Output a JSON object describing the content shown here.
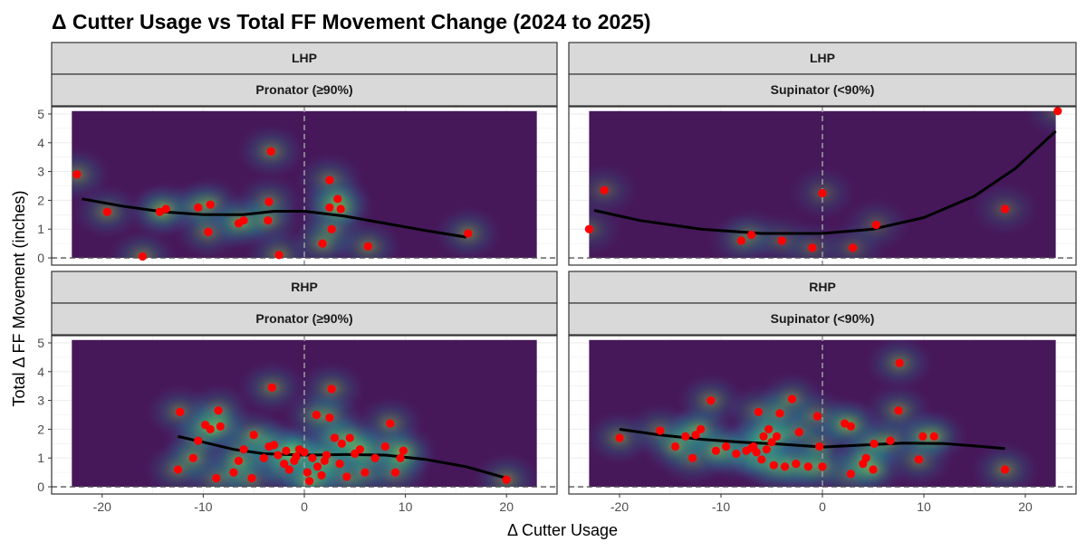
{
  "chart_data": {
    "type": "scatter",
    "title": "Δ Cutter Usage vs Total FF Movement Change (2024 to 2025)",
    "xlabel": "Δ Cutter Usage",
    "ylabel": "Total Δ FF Movement (inches)",
    "xlim": [
      -25,
      25
    ],
    "ylim": [
      -0.25,
      5.25
    ],
    "x_ticks": [
      "-20",
      "-10",
      "0",
      "10",
      "20"
    ],
    "y_ticks": [
      "0",
      "1",
      "2",
      "3",
      "4",
      "5"
    ],
    "grid": true,
    "reference_lines": {
      "vertical_x": 0,
      "horizontal_y": 0,
      "style": "dashed"
    },
    "colors": {
      "points": "#ff0000",
      "smooth": "#000000",
      "strip_fill": "#d9d9d9",
      "density_low": "#46185a",
      "density_high": "#e6f53a"
    },
    "panels": [
      {
        "row_label": "LHP",
        "col_label": "Pronator (≥90%)",
        "points": [
          [
            -22.5,
            2.9
          ],
          [
            -19.5,
            1.6
          ],
          [
            -16,
            0.05
          ],
          [
            -14.3,
            1.6
          ],
          [
            -13.7,
            1.7
          ],
          [
            -10.5,
            1.75
          ],
          [
            -9.3,
            1.85
          ],
          [
            -9.5,
            0.9
          ],
          [
            -6.5,
            1.2
          ],
          [
            -6.0,
            1.3
          ],
          [
            -3.3,
            3.7
          ],
          [
            -3.5,
            1.95
          ],
          [
            -3.6,
            1.3
          ],
          [
            -2.5,
            0.1
          ],
          [
            2.5,
            2.7
          ],
          [
            2.5,
            1.75
          ],
          [
            2.7,
            1.0
          ],
          [
            3.3,
            2.05
          ],
          [
            3.6,
            1.7
          ],
          [
            1.8,
            0.5
          ],
          [
            6.3,
            0.4
          ],
          [
            16.2,
            0.85
          ]
        ],
        "smooth": [
          [
            -22,
            2.05
          ],
          [
            -18,
            1.8
          ],
          [
            -14,
            1.6
          ],
          [
            -10,
            1.5
          ],
          [
            -6,
            1.5
          ],
          [
            -3,
            1.62
          ],
          [
            0,
            1.62
          ],
          [
            4,
            1.45
          ],
          [
            8,
            1.2
          ],
          [
            12,
            0.95
          ],
          [
            16,
            0.72
          ]
        ],
        "density_max": 1.0
      },
      {
        "row_label": "LHP",
        "col_label": "Supinator (<90%)",
        "points": [
          [
            -23,
            1.0
          ],
          [
            -21.5,
            2.35
          ],
          [
            -8,
            0.6
          ],
          [
            -7,
            0.8
          ],
          [
            -4,
            0.6
          ],
          [
            -1,
            0.35
          ],
          [
            0,
            2.25
          ],
          [
            3,
            0.35
          ],
          [
            5.3,
            1.15
          ],
          [
            18,
            1.7
          ],
          [
            23.2,
            5.1
          ]
        ],
        "smooth": [
          [
            -22.5,
            1.65
          ],
          [
            -18,
            1.3
          ],
          [
            -12,
            1.0
          ],
          [
            -6,
            0.85
          ],
          [
            0,
            0.85
          ],
          [
            5,
            1.0
          ],
          [
            10,
            1.4
          ],
          [
            15,
            2.15
          ],
          [
            19,
            3.1
          ],
          [
            23,
            4.4
          ]
        ],
        "density_max": 0.7
      },
      {
        "row_label": "RHP",
        "col_label": "Pronator (≥90%)",
        "points": [
          [
            -12.5,
            0.6
          ],
          [
            -12.3,
            2.6
          ],
          [
            -10.5,
            1.6
          ],
          [
            -9.8,
            2.15
          ],
          [
            -9.3,
            2.0
          ],
          [
            -8.5,
            2.65
          ],
          [
            -8.3,
            2.1
          ],
          [
            -8.7,
            0.3
          ],
          [
            -7,
            0.5
          ],
          [
            -6,
            1.3
          ],
          [
            -5.2,
            0.3
          ],
          [
            -4,
            1.0
          ],
          [
            -3.5,
            1.4
          ],
          [
            -3.2,
            3.45
          ],
          [
            -3.0,
            1.45
          ],
          [
            -2.6,
            1.1
          ],
          [
            -2,
            0.8
          ],
          [
            -1.5,
            0.6
          ],
          [
            -1,
            0.9
          ],
          [
            -0.5,
            1.3
          ],
          [
            0,
            1.2
          ],
          [
            0.3,
            0.5
          ],
          [
            0.8,
            1.0
          ],
          [
            1.3,
            0.7
          ],
          [
            1.7,
            0.4
          ],
          [
            1.2,
            2.5
          ],
          [
            2.2,
            1.1
          ],
          [
            2.7,
            3.4
          ],
          [
            2.5,
            2.4
          ],
          [
            3.0,
            1.7
          ],
          [
            3.5,
            0.8
          ],
          [
            3.7,
            1.5
          ],
          [
            4.2,
            0.35
          ],
          [
            5.0,
            1.15
          ],
          [
            6.0,
            0.5
          ],
          [
            7.0,
            1.0
          ],
          [
            8.0,
            1.4
          ],
          [
            8.5,
            2.2
          ],
          [
            9.0,
            0.5
          ],
          [
            9.5,
            1.0
          ],
          [
            9.8,
            1.25
          ],
          [
            -1.8,
            1.25
          ],
          [
            -0.8,
            1.05
          ],
          [
            2.0,
            0.9
          ],
          [
            4.5,
            1.7
          ],
          [
            -6.5,
            0.9
          ],
          [
            -11.0,
            1.0
          ],
          [
            5.5,
            1.3
          ],
          [
            -5.0,
            1.8
          ],
          [
            0.5,
            0.2
          ],
          [
            20,
            0.25
          ]
        ],
        "smooth": [
          [
            -12.5,
            1.75
          ],
          [
            -10,
            1.55
          ],
          [
            -7,
            1.3
          ],
          [
            -4,
            1.15
          ],
          [
            0,
            1.1
          ],
          [
            4,
            1.12
          ],
          [
            8,
            1.1
          ],
          [
            12,
            0.95
          ],
          [
            16,
            0.7
          ],
          [
            20,
            0.3
          ]
        ],
        "density_max": 1.0
      },
      {
        "row_label": "RHP",
        "col_label": "Supinator (<90%)",
        "points": [
          [
            -20,
            1.7
          ],
          [
            -16,
            1.95
          ],
          [
            -13.5,
            1.75
          ],
          [
            -12.8,
            1.0
          ],
          [
            -12.5,
            1.8
          ],
          [
            -12.0,
            2.0
          ],
          [
            -11,
            3.0
          ],
          [
            -9.5,
            1.4
          ],
          [
            -8.5,
            1.15
          ],
          [
            -7.5,
            1.25
          ],
          [
            -7.0,
            1.35
          ],
          [
            -6.8,
            1.4
          ],
          [
            -6.5,
            1.2
          ],
          [
            -6.3,
            2.6
          ],
          [
            -6,
            0.95
          ],
          [
            -5.8,
            1.75
          ],
          [
            -5.5,
            1.3
          ],
          [
            -5.3,
            2.0
          ],
          [
            -5.0,
            1.55
          ],
          [
            -4.5,
            1.75
          ],
          [
            -4.8,
            0.75
          ],
          [
            -4.2,
            2.55
          ],
          [
            -3.7,
            0.7
          ],
          [
            -3.0,
            3.05
          ],
          [
            -2.3,
            1.9
          ],
          [
            -2.6,
            0.8
          ],
          [
            -1.4,
            0.7
          ],
          [
            -0.5,
            2.45
          ],
          [
            -0.3,
            1.4
          ],
          [
            0,
            0.7
          ],
          [
            2.2,
            2.2
          ],
          [
            2.8,
            2.1
          ],
          [
            2.8,
            0.45
          ],
          [
            4.0,
            0.8
          ],
          [
            4.3,
            1.0
          ],
          [
            5.1,
            1.5
          ],
          [
            5.0,
            0.6
          ],
          [
            6.7,
            1.6
          ],
          [
            7.5,
            2.65
          ],
          [
            7.6,
            4.3
          ],
          [
            9.5,
            0.95
          ],
          [
            9.9,
            1.75
          ],
          [
            11.0,
            1.75
          ],
          [
            18.0,
            0.6
          ],
          [
            -14.5,
            1.4
          ],
          [
            -10.5,
            1.25
          ]
        ],
        "smooth": [
          [
            -20,
            2.0
          ],
          [
            -16,
            1.8
          ],
          [
            -12,
            1.65
          ],
          [
            -8,
            1.55
          ],
          [
            -4,
            1.48
          ],
          [
            0,
            1.38
          ],
          [
            4,
            1.45
          ],
          [
            8,
            1.52
          ],
          [
            12,
            1.5
          ],
          [
            15,
            1.42
          ],
          [
            18,
            1.33
          ]
        ],
        "density_max": 1.0
      }
    ]
  }
}
